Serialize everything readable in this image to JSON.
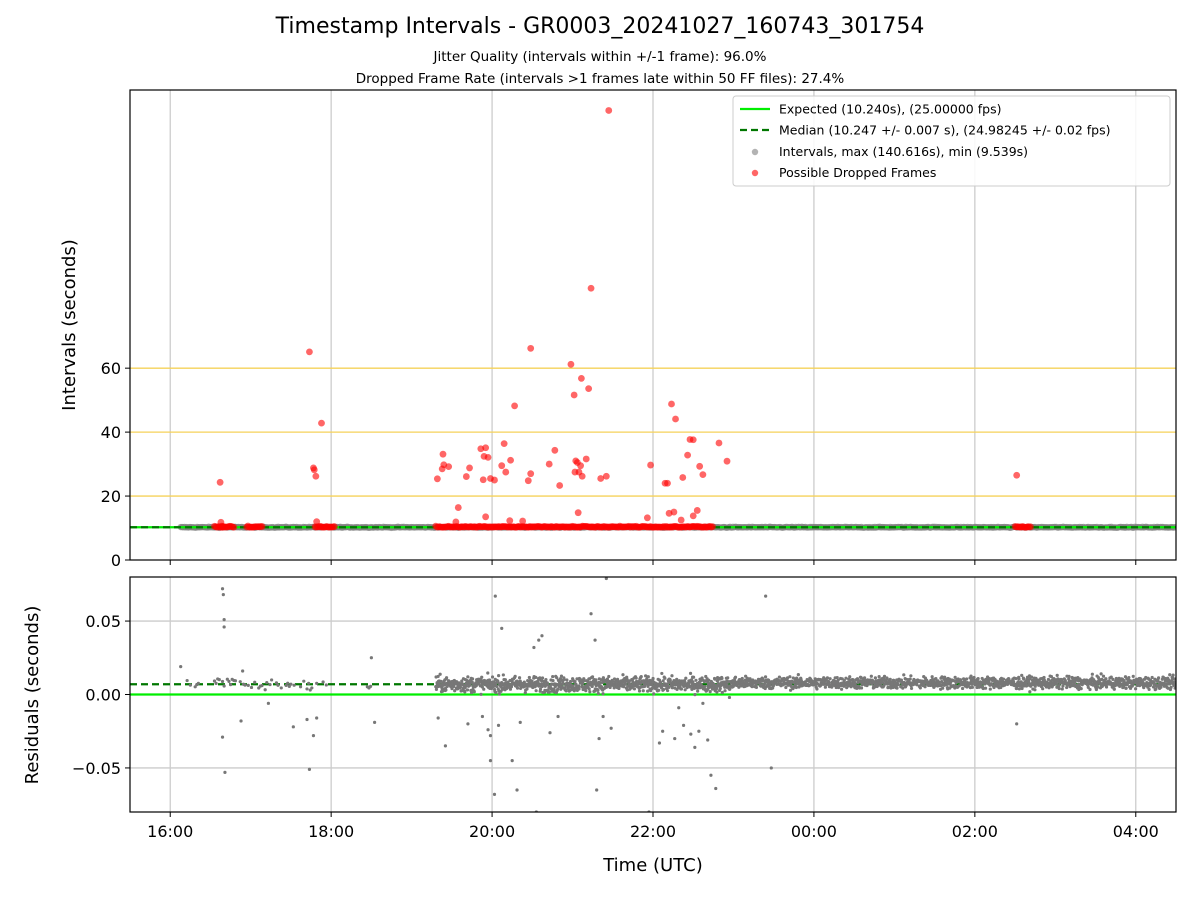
{
  "chart_data": [
    {
      "type": "scatter",
      "title": "Timestamp Intervals - GR0003_20241027_160743_301754",
      "subtitle_lines": [
        "Jitter Quality (intervals within +/-1 frame): 96.0%",
        "Dropped Frame Rate (intervals >1 frames late within 50 FF files): 27.4%"
      ],
      "xlabel": "",
      "ylabel": "Intervals (seconds)",
      "x_axis": "time (UTC), hours after 16:00 on 2024-10-27",
      "xlim": [
        -0.5,
        12.5
      ],
      "ylim": [
        0,
        147
      ],
      "yticks": [
        0,
        20,
        40,
        60
      ],
      "ytick_labels": [
        "0",
        "20",
        "40",
        "60"
      ],
      "grid": "vertical lines at x ticks; gold horizontal lines at y = 20, 40, 60",
      "legend_position": "upper right",
      "legend": [
        "Expected (10.240s), (25.00000 fps)",
        "Median (10.247 +/- 0.007 s), (24.98245 +/- 0.02 fps)",
        "Intervals, max (140.616s), min (9.539s)",
        "Possible Dropped Frames"
      ],
      "expected_interval": 10.24,
      "median_interval": 10.247,
      "normal_interval_band": {
        "x_start": 0.13,
        "x_end": 12.5,
        "value": 10.24
      },
      "series": [
        {
          "name": "Possible Dropped Frames",
          "color": "#ff0000",
          "points": [
            [
              0.62,
              24.3
            ],
            [
              0.63,
              11.8
            ],
            [
              0.64,
              10.6
            ],
            [
              0.65,
              10.2
            ],
            [
              1.73,
              65.1
            ],
            [
              1.78,
              28.8
            ],
            [
              1.79,
              28.2
            ],
            [
              1.81,
              26.2
            ],
            [
              1.82,
              12.0
            ],
            [
              1.88,
              42.8
            ],
            [
              3.32,
              25.4
            ],
            [
              3.38,
              28.5
            ],
            [
              3.39,
              33.1
            ],
            [
              3.4,
              29.8
            ],
            [
              3.46,
              29.2
            ],
            [
              3.58,
              16.4
            ],
            [
              3.68,
              26.1
            ],
            [
              3.72,
              28.8
            ],
            [
              3.86,
              34.8
            ],
            [
              3.89,
              25.1
            ],
            [
              3.9,
              32.4
            ],
            [
              3.92,
              35.1
            ],
            [
              3.95,
              32.1
            ],
            [
              3.98,
              25.5
            ],
            [
              4.03,
              25.0
            ],
            [
              4.12,
              29.5
            ],
            [
              4.15,
              36.4
            ],
            [
              4.17,
              27.5
            ],
            [
              4.23,
              31.2
            ],
            [
              4.28,
              48.2
            ],
            [
              4.45,
              24.8
            ],
            [
              4.48,
              27.0
            ],
            [
              4.48,
              66.2
            ],
            [
              4.71,
              30.0
            ],
            [
              4.78,
              34.3
            ],
            [
              4.84,
              23.3
            ],
            [
              4.98,
              61.2
            ],
            [
              5.02,
              51.6
            ],
            [
              5.03,
              27.5
            ],
            [
              5.04,
              31.0
            ],
            [
              5.06,
              30.5
            ],
            [
              5.08,
              27.5
            ],
            [
              5.1,
              29.5
            ],
            [
              5.11,
              56.8
            ],
            [
              5.12,
              26.2
            ],
            [
              5.17,
              31.6
            ],
            [
              5.2,
              53.6
            ],
            [
              5.23,
              85.0
            ],
            [
              5.35,
              25.5
            ],
            [
              5.42,
              26.2
            ],
            [
              5.45,
              140.6
            ],
            [
              5.97,
              29.7
            ],
            [
              6.15,
              24.0
            ],
            [
              6.18,
              24.0
            ],
            [
              6.23,
              48.8
            ],
            [
              6.28,
              44.1
            ],
            [
              6.37,
              25.8
            ],
            [
              6.43,
              32.8
            ],
            [
              6.46,
              37.7
            ],
            [
              6.5,
              37.6
            ],
            [
              6.58,
              29.3
            ],
            [
              6.62,
              26.7
            ],
            [
              6.82,
              36.6
            ],
            [
              6.92,
              30.9
            ],
            [
              10.52,
              26.5
            ],
            [
              5.07,
              14.8
            ],
            [
              6.2,
              14.6
            ],
            [
              6.26,
              15.0
            ],
            [
              6.55,
              15.5
            ],
            [
              6.5,
              13.8
            ],
            [
              5.93,
              13.2
            ],
            [
              6.35,
              12.5
            ],
            [
              3.92,
              13.5
            ],
            [
              4.22,
              12.3
            ],
            [
              4.38,
              12.2
            ],
            [
              3.55,
              11.9
            ]
          ],
          "clusters_at_expected_interval": [
            [
              0.55,
              0.8
            ],
            [
              0.95,
              1.15
            ],
            [
              1.8,
              2.05
            ],
            [
              3.3,
              6.75
            ],
            [
              10.5,
              10.7
            ]
          ]
        },
        {
          "name": "Intervals, max (140.616s), min (9.539s)",
          "color": "#808080",
          "note": "dense gray points at ~10.24 s across the time range"
        },
        {
          "name": "Expected (10.240s), (25.00000 fps)",
          "color": "#00ee00",
          "value": 10.24
        },
        {
          "name": "Median (10.247 +/- 0.007 s), (24.98245 +/- 0.02 fps)",
          "color": "#007700",
          "value": 10.247
        }
      ]
    },
    {
      "type": "scatter",
      "xlabel": "Time (UTC)",
      "ylabel": "Residuals (seconds)",
      "xlim": [
        -0.5,
        12.5
      ],
      "ylim": [
        -0.08,
        0.08
      ],
      "xticks": [
        0,
        2,
        4,
        6,
        8,
        10,
        12
      ],
      "xtick_labels": [
        "16:00",
        "18:00",
        "20:00",
        "22:00",
        "00:00",
        "02:00",
        "04:00"
      ],
      "yticks": [
        -0.05,
        0,
        0.05
      ],
      "ytick_labels": [
        "−0.05",
        "0.00",
        "0.05"
      ],
      "grid": "on",
      "expected_residual": 0.0,
      "median_residual": 0.007,
      "series": [
        {
          "name": "",
          "color": "#808080",
          "note": "residuals cluster at ~0.007 s; dense coverage from 19:20 UTC onward",
          "dense_segments": [
            {
              "x_start": 3.3,
              "x_end": 7.0,
              "center": 0.007,
              "spread": 0.009
            },
            {
              "x_start": 7.0,
              "x_end": 12.5,
              "center": 0.008,
              "spread": 0.007
            }
          ],
          "sparse_segments": [
            {
              "x_start": 0.13,
              "x_end": 0.4,
              "center": 0.007,
              "spread": 0.006
            },
            {
              "x_start": 0.55,
              "x_end": 1.1,
              "center": 0.008,
              "spread": 0.008
            },
            {
              "x_start": 1.1,
              "x_end": 1.95,
              "center": 0.007,
              "spread": 0.007
            },
            {
              "x_start": 2.45,
              "x_end": 2.6,
              "center": 0.007,
              "spread": 0.008
            }
          ],
          "points": [
            [
              0.13,
              0.019
            ],
            [
              0.65,
              0.072
            ],
            [
              0.66,
              0.068
            ],
            [
              0.67,
              0.051
            ],
            [
              0.67,
              0.046
            ],
            [
              0.65,
              -0.029
            ],
            [
              0.68,
              -0.053
            ],
            [
              0.88,
              -0.018
            ],
            [
              0.9,
              0.016
            ],
            [
              1.22,
              -0.006
            ],
            [
              1.53,
              -0.022
            ],
            [
              1.7,
              -0.017
            ],
            [
              1.73,
              -0.051
            ],
            [
              1.78,
              -0.028
            ],
            [
              1.82,
              -0.016
            ],
            [
              2.5,
              0.025
            ],
            [
              2.54,
              -0.019
            ],
            [
              3.33,
              -0.016
            ],
            [
              3.42,
              -0.035
            ],
            [
              3.7,
              -0.02
            ],
            [
              3.88,
              -0.015
            ],
            [
              3.95,
              -0.024
            ],
            [
              3.98,
              -0.045
            ],
            [
              3.98,
              -0.028
            ],
            [
              4.04,
              0.067
            ],
            [
              4.08,
              -0.021
            ],
            [
              4.12,
              0.045
            ],
            [
              4.25,
              -0.045
            ],
            [
              4.31,
              -0.065
            ],
            [
              4.52,
              0.032
            ],
            [
              4.55,
              -0.08
            ],
            [
              4.62,
              0.04
            ],
            [
              4.58,
              0.037
            ],
            [
              4.03,
              -0.068
            ],
            [
              4.35,
              -0.019
            ],
            [
              4.72,
              -0.026
            ],
            [
              4.82,
              -0.015
            ],
            [
              5.23,
              0.055
            ],
            [
              5.28,
              0.037
            ],
            [
              5.3,
              -0.065
            ],
            [
              5.33,
              -0.03
            ],
            [
              5.38,
              -0.015
            ],
            [
              5.42,
              0.079
            ],
            [
              5.48,
              -0.023
            ],
            [
              5.95,
              -0.08
            ],
            [
              6.08,
              -0.033
            ],
            [
              6.12,
              -0.025
            ],
            [
              6.27,
              -0.03
            ],
            [
              6.32,
              -0.009
            ],
            [
              6.38,
              -0.021
            ],
            [
              6.47,
              -0.027
            ],
            [
              6.52,
              -0.036
            ],
            [
              6.57,
              -0.025
            ],
            [
              6.62,
              -0.006
            ],
            [
              6.68,
              -0.031
            ],
            [
              6.72,
              -0.055
            ],
            [
              6.78,
              -0.064
            ],
            [
              6.95,
              -0.002
            ],
            [
              7.4,
              0.067
            ],
            [
              7.47,
              -0.05
            ],
            [
              10.52,
              -0.02
            ]
          ]
        },
        {
          "name": "Expected",
          "color": "#00ee00",
          "value": 0.0
        },
        {
          "name": "Median",
          "color": "#007700",
          "value": 0.007
        }
      ]
    }
  ]
}
